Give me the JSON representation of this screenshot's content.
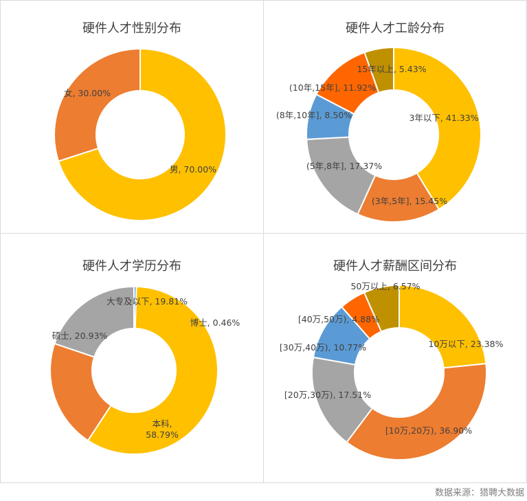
{
  "chart_data": [
    {
      "type": "donut",
      "title": "硬件人才性别分布",
      "slices": [
        {
          "name": "男",
          "value": 70.0,
          "label": "男, 70.00%",
          "color": "#FFC000"
        },
        {
          "name": "女",
          "value": 30.0,
          "label": "女, 30.00%",
          "color": "#ED7D31"
        }
      ]
    },
    {
      "type": "donut",
      "title": "硬件人才工龄分布",
      "slices": [
        {
          "name": "3年以下",
          "value": 41.33,
          "label": "3年以下, 41.33%",
          "color": "#FFC000"
        },
        {
          "name": "(3年,5年]",
          "value": 15.45,
          "label": "(3年,5年], 15.45%",
          "color": "#ED7D31"
        },
        {
          "name": "(5年,8年]",
          "value": 17.37,
          "label": "(5年,8年], 17.37%",
          "color": "#A5A5A5"
        },
        {
          "name": "(8年,10年]",
          "value": 8.5,
          "label": "(8年,10年], 8.50%",
          "color": "#5B9BD5"
        },
        {
          "name": "(10年,15年]",
          "value": 11.92,
          "label": "(10年,15年], 11.92%",
          "color": "#FF6600"
        },
        {
          "name": "15年以上",
          "value": 5.43,
          "label": "15年以上, 5.43%",
          "color": "#BF9000"
        }
      ]
    },
    {
      "type": "donut",
      "title": "硬件人才学历分布",
      "slices": [
        {
          "name": "博士",
          "value": 0.46,
          "label": "博士, 0.46%",
          "color": "#5B9BD5"
        },
        {
          "name": "本科",
          "value": 58.79,
          "label": "本科,\n58.79%",
          "color": "#FFC000"
        },
        {
          "name": "硕士",
          "value": 20.93,
          "label": "硕士, 20.93%",
          "color": "#ED7D31"
        },
        {
          "name": "大专及以下",
          "value": 19.81,
          "label": "大专及以下, 19.81%",
          "color": "#A5A5A5"
        }
      ]
    },
    {
      "type": "donut",
      "title": "硬件人才薪酬区间分布",
      "slices": [
        {
          "name": "10万以下",
          "value": 23.38,
          "label": "10万以下, 23.38%",
          "color": "#FFC000"
        },
        {
          "name": "[10万,20万)",
          "value": 36.9,
          "label": "[10万,20万), 36.90%",
          "color": "#ED7D31"
        },
        {
          "name": "[20万,30万)",
          "value": 17.51,
          "label": "[20万,30万), 17.51%",
          "color": "#A5A5A5"
        },
        {
          "name": "[30万,40万)",
          "value": 10.77,
          "label": "[30万,40万), 10.77%",
          "color": "#5B9BD5"
        },
        {
          "name": "[40万,50万)",
          "value": 4.88,
          "label": "[40万,50万), 4.88%",
          "color": "#FF6600"
        },
        {
          "name": "50万以上",
          "value": 6.57,
          "label": "50万以上, 6.57%",
          "color": "#BF9000"
        }
      ]
    }
  ],
  "source": "数据来源：猎聘大数据"
}
